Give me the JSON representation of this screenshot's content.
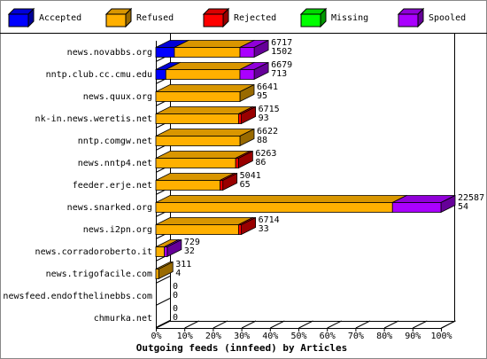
{
  "chart_data": {
    "type": "bar3d",
    "title": "Outgoing feeds (innfeed) by Articles",
    "categories": [
      "news.novabbs.org",
      "nntp.club.cc.cmu.edu",
      "news.quux.org",
      "nk-in.news.weretis.net",
      "nntp.comgw.net",
      "news.nntp4.net",
      "feeder.erje.net",
      "news.snarked.org",
      "news.i2pn.org",
      "news.corradoroberto.it",
      "news.trigofacile.com",
      "newsfeed.endofthelinebbs.com",
      "chmurka.net"
    ],
    "series": [
      {
        "name": "Accepted",
        "color": "#0000ff",
        "values": [
          6.5,
          3.5,
          0,
          0,
          0,
          0,
          0,
          0,
          0,
          0,
          0,
          0,
          0
        ]
      },
      {
        "name": "Refused",
        "color": "#ffb000",
        "values": [
          23,
          26,
          29.5,
          29,
          29.5,
          28,
          22.5,
          83,
          29,
          3,
          1,
          0,
          0
        ]
      },
      {
        "name": "Rejected",
        "color": "#ff0000",
        "values": [
          0,
          0,
          0,
          1,
          0,
          1,
          1,
          0,
          1,
          0,
          0,
          0,
          0
        ]
      },
      {
        "name": "Missing",
        "color": "#00ff00",
        "values": [
          0,
          0,
          0,
          0,
          0,
          0,
          0,
          0,
          0,
          0,
          0,
          0,
          0
        ]
      },
      {
        "name": "Spooled",
        "color": "#aa00ff",
        "values": [
          5,
          5,
          0,
          0,
          0,
          0,
          0,
          17,
          0,
          1,
          0,
          0,
          0
        ]
      }
    ],
    "annotations": [
      [
        6717,
        1502
      ],
      [
        6679,
        713
      ],
      [
        6641,
        95
      ],
      [
        6715,
        93
      ],
      [
        6622,
        88
      ],
      [
        6263,
        86
      ],
      [
        5041,
        65
      ],
      [
        22587,
        54
      ],
      [
        6714,
        33
      ],
      [
        729,
        32
      ],
      [
        311,
        4
      ],
      [
        0,
        0
      ],
      [
        0,
        0
      ]
    ],
    "xlim": [
      0,
      100
    ],
    "xticks": [
      {
        "value": 0,
        "label": "0%"
      },
      {
        "value": 10,
        "label": "10%"
      },
      {
        "value": 20,
        "label": "20%"
      },
      {
        "value": 30,
        "label": "30%"
      },
      {
        "value": 40,
        "label": "40%"
      },
      {
        "value": 50,
        "label": "50%"
      },
      {
        "value": 60,
        "label": "60%"
      },
      {
        "value": 70,
        "label": "70%"
      },
      {
        "value": 80,
        "label": "80%"
      },
      {
        "value": 90,
        "label": "90%"
      },
      {
        "value": 100,
        "label": "100%"
      }
    ]
  }
}
